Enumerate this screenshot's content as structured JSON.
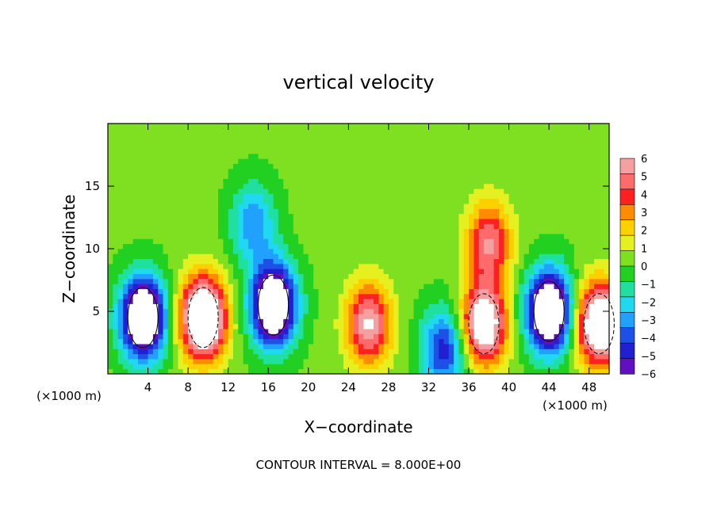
{
  "chart_data": {
    "type": "heatmap",
    "title": "vertical velocity",
    "xlabel": "X−coordinate",
    "ylabel": "Z−coordinate",
    "x_unit_left": "(×1000 m)",
    "x_unit_right": "(×1000 m)",
    "footer": "CONTOUR INTERVAL = 8.000E+00",
    "xlim": [
      0,
      50
    ],
    "ylim": [
      0,
      20
    ],
    "x_ticks": [
      "4",
      "8",
      "12",
      "16",
      "20",
      "24",
      "28",
      "32",
      "36",
      "40",
      "44",
      "48"
    ],
    "y_ticks": [
      "5",
      "10",
      "15"
    ],
    "colorbar": {
      "range": [
        -6,
        6
      ],
      "labels": [
        "6",
        "5",
        "4",
        "3",
        "2",
        "1",
        "0",
        "−1",
        "−2",
        "−3",
        "−4",
        "−5",
        "−6"
      ],
      "colors": [
        "#f4a0a0",
        "#ff6a6a",
        "#ff2020",
        "#ff8c00",
        "#ffd000",
        "#e6f020",
        "#7ee020",
        "#22d022",
        "#20e0a0",
        "#20d8f0",
        "#20a0ff",
        "#1e50e8",
        "#2020d0",
        "#6010c0"
      ]
    },
    "features": [
      {
        "x": 3.5,
        "z": 4.5,
        "w": -10
      },
      {
        "x": 9.5,
        "z": 4.5,
        "w": 10
      },
      {
        "x": 16.5,
        "z": 5.5,
        "w": -10
      },
      {
        "x": 26.0,
        "z": 4.0,
        "w": 6
      },
      {
        "x": 33.5,
        "z": 2.0,
        "w": -5
      },
      {
        "x": 37.5,
        "z": 4.0,
        "w": 8
      },
      {
        "x": 44.0,
        "z": 5.0,
        "w": -10
      },
      {
        "x": 49.0,
        "z": 4.0,
        "w": 9
      },
      {
        "x": 14.5,
        "z": 12.0,
        "w": -3.5
      },
      {
        "x": 38.0,
        "z": 10.5,
        "w": 5
      }
    ]
  }
}
